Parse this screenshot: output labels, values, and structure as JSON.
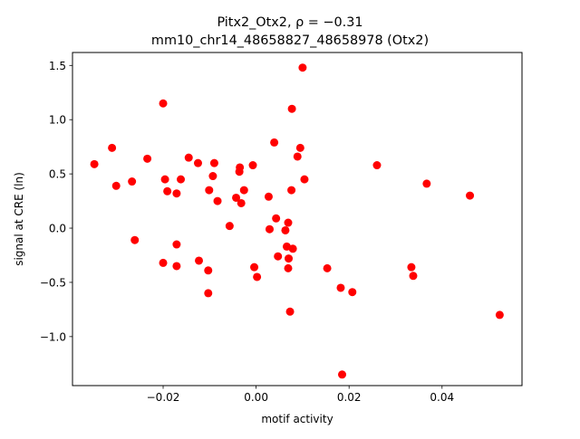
{
  "chart_data": {
    "type": "scatter",
    "title_line1": "Pitx2_Otx2, ρ = −0.31",
    "title_line2": "mm10_chr14_48658827_48658978 (Otx2)",
    "xlabel": "motif activity",
    "ylabel": "signal at CRE (ln)",
    "xlim": [
      -0.0395,
      0.0572
    ],
    "ylim": [
      -1.4518,
      1.6194
    ],
    "xticks": [
      -0.02,
      0.0,
      0.02,
      0.04
    ],
    "xtick_labels": [
      "−0.02",
      "0.00",
      "0.02",
      "0.04"
    ],
    "yticks": [
      -1.0,
      -0.5,
      0.0,
      0.5,
      1.0,
      1.5
    ],
    "ytick_labels": [
      "−1.0",
      "−0.5",
      "0.0",
      "0.5",
      "1.0",
      "1.5"
    ],
    "marker_color": "#ff0000",
    "grid": false,
    "points": [
      {
        "x": -0.0348,
        "y": 0.59
      },
      {
        "x": -0.031,
        "y": 0.74
      },
      {
        "x": -0.0301,
        "y": 0.39
      },
      {
        "x": -0.0267,
        "y": 0.43
      },
      {
        "x": -0.0261,
        "y": -0.11
      },
      {
        "x": -0.0234,
        "y": 0.64
      },
      {
        "x": -0.02,
        "y": 1.15
      },
      {
        "x": -0.02,
        "y": -0.32
      },
      {
        "x": -0.0196,
        "y": 0.45
      },
      {
        "x": -0.0191,
        "y": 0.34
      },
      {
        "x": -0.0171,
        "y": 0.32
      },
      {
        "x": -0.0171,
        "y": -0.15
      },
      {
        "x": -0.0171,
        "y": -0.35
      },
      {
        "x": -0.0162,
        "y": 0.45
      },
      {
        "x": -0.0145,
        "y": 0.65
      },
      {
        "x": -0.0125,
        "y": 0.6
      },
      {
        "x": -0.0123,
        "y": -0.3
      },
      {
        "x": -0.0103,
        "y": -0.39
      },
      {
        "x": -0.0103,
        "y": -0.6
      },
      {
        "x": -0.0101,
        "y": 0.35
      },
      {
        "x": -0.0093,
        "y": 0.48
      },
      {
        "x": -0.009,
        "y": 0.6
      },
      {
        "x": -0.0083,
        "y": 0.25
      },
      {
        "x": -0.0057,
        "y": 0.02
      },
      {
        "x": -0.0043,
        "y": 0.28
      },
      {
        "x": -0.0036,
        "y": 0.52
      },
      {
        "x": -0.0035,
        "y": 0.56
      },
      {
        "x": -0.0032,
        "y": 0.23
      },
      {
        "x": -0.0026,
        "y": 0.35
      },
      {
        "x": -0.0007,
        "y": 0.58
      },
      {
        "x": -0.0004,
        "y": -0.36
      },
      {
        "x": 0.0002,
        "y": -0.45
      },
      {
        "x": 0.0027,
        "y": 0.29
      },
      {
        "x": 0.0029,
        "y": -0.01
      },
      {
        "x": 0.0039,
        "y": 0.79
      },
      {
        "x": 0.0043,
        "y": 0.09
      },
      {
        "x": 0.0047,
        "y": -0.26
      },
      {
        "x": 0.0063,
        "y": -0.02
      },
      {
        "x": 0.0066,
        "y": -0.17
      },
      {
        "x": 0.0069,
        "y": 0.05
      },
      {
        "x": 0.0069,
        "y": -0.37
      },
      {
        "x": 0.007,
        "y": -0.28
      },
      {
        "x": 0.0073,
        "y": -0.77
      },
      {
        "x": 0.0076,
        "y": 0.35
      },
      {
        "x": 0.0077,
        "y": 1.1
      },
      {
        "x": 0.0079,
        "y": -0.19
      },
      {
        "x": 0.0089,
        "y": 0.66
      },
      {
        "x": 0.0095,
        "y": 0.74
      },
      {
        "x": 0.01,
        "y": 1.48
      },
      {
        "x": 0.0104,
        "y": 0.45
      },
      {
        "x": 0.0153,
        "y": -0.37
      },
      {
        "x": 0.0182,
        "y": -0.55
      },
      {
        "x": 0.0185,
        "y": -1.35
      },
      {
        "x": 0.0207,
        "y": -0.59
      },
      {
        "x": 0.026,
        "y": 0.58
      },
      {
        "x": 0.0334,
        "y": -0.36
      },
      {
        "x": 0.0338,
        "y": -0.44
      },
      {
        "x": 0.0367,
        "y": 0.41
      },
      {
        "x": 0.046,
        "y": 0.3
      },
      {
        "x": 0.0524,
        "y": -0.8
      }
    ]
  }
}
